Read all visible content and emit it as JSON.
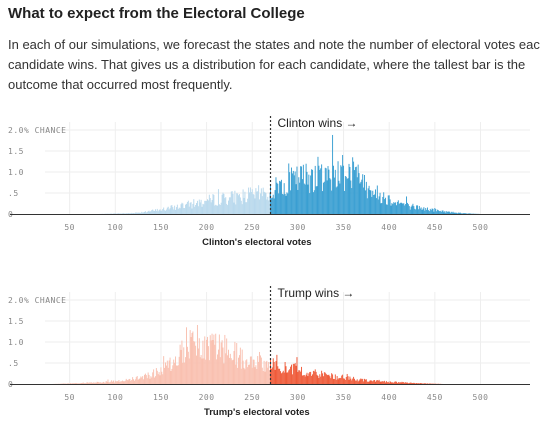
{
  "title": "What to expect from the Electoral College",
  "intro": "In each of our simulations, we forecast the states and note the number of electoral votes each candidate wins. That gives us a distribution for each candidate, where the tallest bar is the outcome that occurred most frequently.",
  "chart_data": [
    {
      "type": "bar",
      "xlabel": "Clinton's electoral votes",
      "ylabel": "",
      "annotation": "Clinton wins →",
      "threshold": 270,
      "x_ticks": [
        "50",
        "100",
        "150",
        "200",
        "250",
        "300",
        "350",
        "400",
        "450",
        "500"
      ],
      "y_ticks": [
        "2.0% CHANCE",
        "1.5",
        "1.0",
        ".5",
        "0"
      ],
      "xlim": [
        0,
        538
      ],
      "ylim": [
        0,
        2.0
      ],
      "color_below": "#b9d9ed",
      "color_above": "#3a9fd2",
      "profile": {
        "x": [
          80,
          120,
          150,
          180,
          210,
          240,
          265,
          270,
          280,
          300,
          320,
          340,
          355,
          370,
          385,
          400,
          420,
          440,
          460,
          480,
          500
        ],
        "y": [
          0.0,
          0.02,
          0.1,
          0.22,
          0.35,
          0.42,
          0.5,
          0.5,
          0.7,
          0.82,
          0.95,
          0.95,
          1.0,
          0.8,
          0.5,
          0.35,
          0.2,
          0.12,
          0.06,
          0.02,
          0.0
        ]
      },
      "peaks": [
        {
          "x": 360,
          "y": 1.35
        },
        {
          "x": 330,
          "y": 1.1
        },
        {
          "x": 350,
          "y": 1.15
        }
      ]
    },
    {
      "type": "bar",
      "xlabel": "Trump's electoral votes",
      "ylabel": "",
      "annotation": "Trump wins →",
      "threshold": 270,
      "x_ticks": [
        "50",
        "100",
        "150",
        "200",
        "250",
        "300",
        "350",
        "400",
        "450",
        "500"
      ],
      "y_ticks": [
        "2.0% CHANCE",
        "1.5",
        "1.0",
        ".5",
        "0"
      ],
      "xlim": [
        0,
        538
      ],
      "ylim": [
        0,
        2.0
      ],
      "color_below": "#f9c0b0",
      "color_above": "#ef5b3a",
      "profile": {
        "x": [
          30,
          60,
          100,
          130,
          150,
          165,
          180,
          200,
          220,
          240,
          265,
          270,
          290,
          310,
          330,
          350,
          370,
          400,
          430,
          460
        ],
        "y": [
          0.0,
          0.02,
          0.06,
          0.15,
          0.3,
          0.55,
          0.9,
          0.9,
          0.85,
          0.6,
          0.5,
          0.45,
          0.38,
          0.3,
          0.22,
          0.15,
          0.1,
          0.05,
          0.02,
          0.0
        ]
      },
      "peaks": [
        {
          "x": 178,
          "y": 1.35
        },
        {
          "x": 185,
          "y": 1.25
        },
        {
          "x": 200,
          "y": 1.05
        }
      ]
    }
  ]
}
